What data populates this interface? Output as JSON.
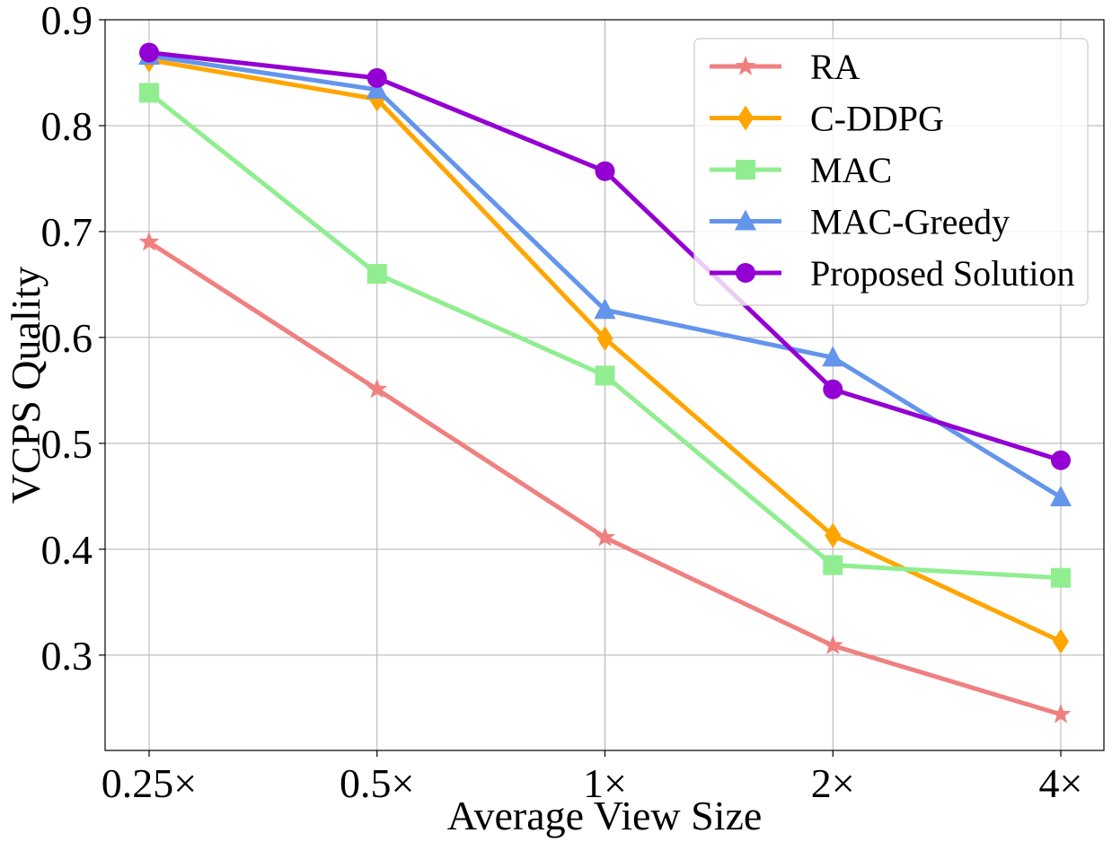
{
  "chart_data": {
    "type": "line",
    "xlabel": "Average View Size",
    "ylabel": "VCPS Quality",
    "categories": [
      "0.25×",
      "0.5×",
      "1×",
      "2×",
      "4×"
    ],
    "ylim": [
      0.21,
      0.9
    ],
    "yticks": [
      "0.3",
      "0.4",
      "0.5",
      "0.6",
      "0.7",
      "0.8",
      "0.9"
    ],
    "grid": true,
    "legend_position": "top-right",
    "series": [
      {
        "name": "RA",
        "color": "#f08080",
        "marker": "star",
        "values": [
          0.69,
          0.551,
          0.411,
          0.309,
          0.244
        ]
      },
      {
        "name": "C-DDPG",
        "color": "#ffa500",
        "marker": "diamond",
        "values": [
          0.862,
          0.825,
          0.599,
          0.413,
          0.313
        ]
      },
      {
        "name": "MAC",
        "color": "#90ee90",
        "marker": "square",
        "values": [
          0.831,
          0.66,
          0.564,
          0.385,
          0.373
        ]
      },
      {
        "name": "MAC-Greedy",
        "color": "#6495ed",
        "marker": "triangle",
        "values": [
          0.866,
          0.834,
          0.626,
          0.581,
          0.449
        ]
      },
      {
        "name": "Proposed Solution",
        "color": "#9400d3",
        "marker": "circle",
        "values": [
          0.869,
          0.845,
          0.757,
          0.551,
          0.484
        ]
      }
    ]
  }
}
